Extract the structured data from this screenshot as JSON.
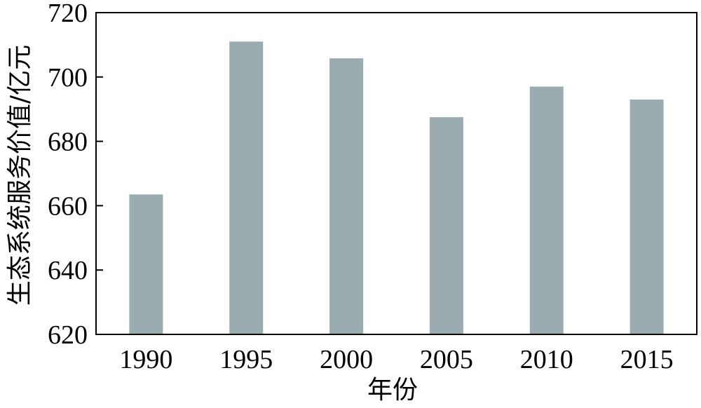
{
  "chart_data": {
    "type": "bar",
    "title": "",
    "xlabel": "年份",
    "ylabel": "生态系统服务价值/亿元",
    "categories": [
      "1990",
      "1995",
      "2000",
      "2005",
      "2010",
      "2015"
    ],
    "values": [
      663.5,
      711,
      705.8,
      687.5,
      697,
      693
    ],
    "ylim": [
      620,
      720
    ],
    "yticks": [
      620,
      640,
      660,
      680,
      700,
      720
    ],
    "bar_color": "#9aacb0",
    "grid": false,
    "legend": "none"
  }
}
